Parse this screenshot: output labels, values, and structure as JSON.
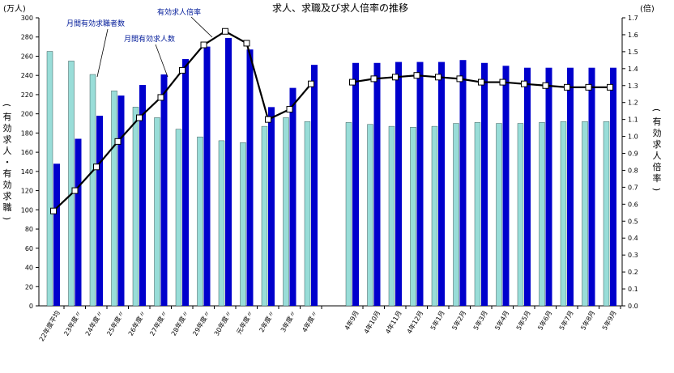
{
  "chart_data": {
    "type": "bar",
    "title": "求人、求職及び求人倍率の推移",
    "left_unit": "(万人)",
    "right_unit": "(倍)",
    "left_axis_label": "(有効求人・有効求職)",
    "right_axis_label": "(有効求人倍率)",
    "categories": [
      "22年度平均",
      "23年度〃",
      "24年度〃",
      "25年度〃",
      "26年度〃",
      "27年度〃",
      "28年度〃",
      "29年度〃",
      "30年度〃",
      "元年度〃",
      "2年度〃",
      "3年度〃",
      "4年度〃",
      "4年9月",
      "4年10月",
      "4年11月",
      "4年12月",
      "5年1月",
      "5年2月",
      "5年3月",
      "5年4月",
      "5年5月",
      "5年6月",
      "5年7月",
      "5年8月",
      "5年9月"
    ],
    "ylim_left": [
      0,
      300
    ],
    "ylim_right": [
      0.0,
      1.7
    ],
    "left_ticks": [
      0,
      20,
      40,
      60,
      80,
      100,
      120,
      140,
      160,
      180,
      200,
      220,
      240,
      260,
      280,
      300
    ],
    "right_ticks": [
      "0.0",
      "0.1",
      "0.2",
      "0.3",
      "0.4",
      "0.5",
      "0.6",
      "0.7",
      "0.8",
      "0.9",
      "1.0",
      "1.1",
      "1.2",
      "1.3",
      "1.4",
      "1.5",
      "1.6",
      "1.7"
    ],
    "series": [
      {
        "name": "月間有効求職者数",
        "kind": "bar",
        "color": "#99ddd8",
        "values": [
          265,
          255,
          241,
          224,
          207,
          196,
          184,
          176,
          172,
          170,
          187,
          196,
          192,
          191,
          189,
          187,
          186,
          187,
          190,
          191,
          190,
          190,
          191,
          192,
          192,
          192
        ]
      },
      {
        "name": "月間有効求人数",
        "kind": "bar",
        "color": "#0000cc",
        "values": [
          148,
          174,
          198,
          219,
          230,
          241,
          257,
          270,
          279,
          267,
          207,
          227,
          251,
          253,
          253,
          254,
          254,
          254,
          256,
          253,
          250,
          248,
          248,
          248,
          248,
          248
        ]
      },
      {
        "name": "有効求人倍率",
        "kind": "line",
        "color": "#000000",
        "values": [
          0.56,
          0.68,
          0.82,
          0.97,
          1.11,
          1.23,
          1.39,
          1.54,
          1.62,
          1.55,
          1.1,
          1.16,
          1.31,
          1.32,
          1.34,
          1.35,
          1.36,
          1.35,
          1.34,
          1.32,
          1.32,
          1.31,
          1.3,
          1.29,
          1.29,
          1.29
        ]
      }
    ],
    "grid": false
  }
}
